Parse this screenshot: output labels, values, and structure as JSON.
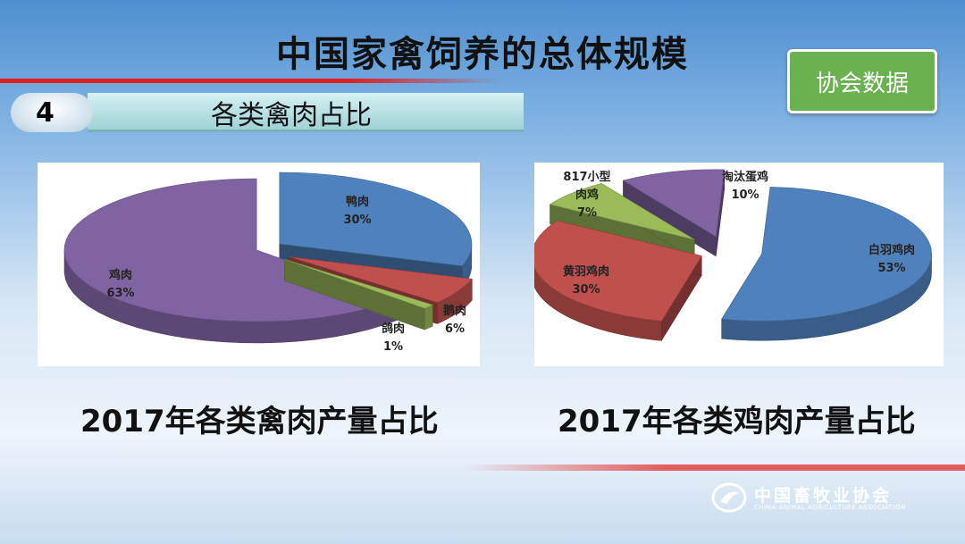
{
  "header": {
    "title": "中国家禽饲养的总体规模",
    "badge": "协会数据"
  },
  "section": {
    "number": "4",
    "title": "各类禽肉占比"
  },
  "footer": {
    "org_cn": "中国畜牧业协会",
    "org_en": "CHINA ANIMAL AGRICULTURE ASSOCIATION"
  },
  "chart_data": [
    {
      "type": "pie",
      "title": "2017年各类禽肉产量占比",
      "slices": [
        {
          "label": "鸭肉",
          "value": 30,
          "display": "30%",
          "color": "#4f81bd"
        },
        {
          "label": "鹅肉",
          "value": 6,
          "display": "6%",
          "color": "#c0504d"
        },
        {
          "label": "鸽肉",
          "value": 1,
          "display": "1%",
          "color": "#9bbb59"
        },
        {
          "label": "鸡肉",
          "value": 63,
          "display": "63%",
          "color": "#8064a2"
        }
      ]
    },
    {
      "type": "pie",
      "title": "2017年各类鸡肉产量占比",
      "slices": [
        {
          "label": "白羽鸡肉",
          "value": 53,
          "display": "53%",
          "color": "#4f81bd"
        },
        {
          "label": "黄羽鸡肉",
          "value": 30,
          "display": "30%",
          "color": "#c0504d"
        },
        {
          "label": "817小型\n肉鸡",
          "value": 7,
          "display": "7%",
          "color": "#9bbb59"
        },
        {
          "label": "淘汰蛋鸡",
          "value": 10,
          "display": "10%",
          "color": "#8064a2"
        }
      ]
    }
  ]
}
